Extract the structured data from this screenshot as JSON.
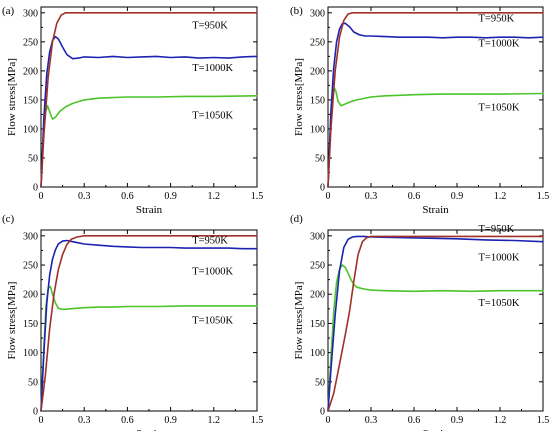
{
  "chart_data": [
    {
      "type": "line",
      "panel_label": "(a)",
      "xlabel": "Strain",
      "ylabel": "Flow stress[MPa]",
      "xlim": [
        0,
        1.5
      ],
      "ylim": [
        0,
        310
      ],
      "xticks": [
        "0",
        "0.3",
        "0.6",
        "0.9",
        "1.2",
        "1.5"
      ],
      "yticks": [
        "0",
        "50",
        "100",
        "150",
        "200",
        "250",
        "300"
      ],
      "grid": false,
      "series": [
        {
          "name": "T=950K",
          "color": "#a0302a",
          "label_pos": [
            1.05,
            273
          ],
          "x": [
            0,
            0.02,
            0.05,
            0.08,
            0.11,
            0.14,
            0.17,
            0.2,
            0.3,
            0.6,
            0.9,
            1.2,
            1.5
          ],
          "y": [
            0,
            90,
            190,
            250,
            282,
            296,
            300,
            300,
            300,
            300,
            300,
            300,
            300
          ]
        },
        {
          "name": "T=1000K",
          "color": "#1d23b0",
          "label_pos": [
            1.05,
            200
          ],
          "x": [
            0,
            0.02,
            0.04,
            0.06,
            0.08,
            0.1,
            0.12,
            0.15,
            0.18,
            0.22,
            0.26,
            0.3,
            0.4,
            0.5,
            0.6,
            0.7,
            0.8,
            0.9,
            1.0,
            1.1,
            1.2,
            1.3,
            1.4,
            1.5
          ],
          "y": [
            0,
            120,
            195,
            232,
            252,
            259,
            255,
            241,
            228,
            221,
            222,
            224,
            223,
            225,
            223,
            224,
            225,
            223,
            224,
            222,
            223,
            222,
            224,
            225
          ]
        },
        {
          "name": "T=1050K",
          "color": "#4cc42a",
          "label_pos": [
            1.05,
            118
          ],
          "x": [
            0,
            0.015,
            0.03,
            0.045,
            0.06,
            0.08,
            0.1,
            0.13,
            0.17,
            0.22,
            0.3,
            0.4,
            0.5,
            0.6,
            0.8,
            1.0,
            1.2,
            1.5
          ],
          "y": [
            0,
            80,
            128,
            140,
            130,
            117,
            120,
            130,
            138,
            144,
            150,
            153,
            154,
            155,
            155,
            156,
            156,
            157
          ]
        }
      ]
    },
    {
      "type": "line",
      "panel_label": "(b)",
      "xlabel": "Strain",
      "ylabel": "Flow stress[MPa]",
      "xlim": [
        0,
        1.5
      ],
      "ylim": [
        0,
        310
      ],
      "xticks": [
        "0",
        "0.3",
        "0.6",
        "0.9",
        "1.2",
        "1.5"
      ],
      "yticks": [
        "0",
        "50",
        "100",
        "150",
        "200",
        "250",
        "300"
      ],
      "grid": false,
      "series": [
        {
          "name": "T=950K",
          "color": "#a0302a",
          "label_pos": [
            1.05,
            285
          ],
          "x": [
            0,
            0.02,
            0.05,
            0.08,
            0.11,
            0.14,
            0.17,
            0.2,
            0.3,
            0.6,
            0.9,
            1.2,
            1.5
          ],
          "y": [
            0,
            100,
            200,
            258,
            287,
            298,
            300,
            300,
            300,
            300,
            300,
            300,
            300
          ]
        },
        {
          "name": "T=1000K",
          "color": "#1d23b0",
          "label_pos": [
            1.05,
            242
          ],
          "x": [
            0,
            0.02,
            0.04,
            0.06,
            0.08,
            0.1,
            0.12,
            0.15,
            0.18,
            0.22,
            0.26,
            0.3,
            0.4,
            0.5,
            0.6,
            0.7,
            0.8,
            0.9,
            1.0,
            1.1,
            1.2,
            1.3,
            1.4,
            1.5
          ],
          "y": [
            0,
            130,
            205,
            250,
            272,
            281,
            282,
            276,
            267,
            262,
            260,
            260,
            259,
            258,
            258,
            258,
            257,
            258,
            258,
            257,
            258,
            258,
            257,
            258
          ]
        },
        {
          "name": "T=1050K",
          "color": "#4cc42a",
          "label_pos": [
            1.05,
            132
          ],
          "x": [
            0,
            0.015,
            0.03,
            0.045,
            0.055,
            0.07,
            0.09,
            0.12,
            0.16,
            0.2,
            0.3,
            0.4,
            0.5,
            0.6,
            0.8,
            1.0,
            1.2,
            1.5
          ],
          "y": [
            0,
            90,
            150,
            170,
            165,
            148,
            140,
            143,
            147,
            150,
            155,
            157,
            158,
            159,
            160,
            160,
            160,
            161
          ]
        }
      ]
    },
    {
      "type": "line",
      "panel_label": "(c)",
      "xlabel": "Strain",
      "ylabel": "Flow stress[MPa]",
      "xlim": [
        0,
        1.5
      ],
      "ylim": [
        0,
        310
      ],
      "xticks": [
        "0",
        "0.3",
        "0.6",
        "0.9",
        "1.2",
        "1.5"
      ],
      "yticks": [
        "0",
        "50",
        "100",
        "150",
        "200",
        "250",
        "300"
      ],
      "grid": false,
      "series": [
        {
          "name": "T=950K",
          "color": "#a0302a",
          "label_pos": [
            1.05,
            287
          ],
          "x": [
            0,
            0.03,
            0.06,
            0.09,
            0.12,
            0.15,
            0.18,
            0.21,
            0.25,
            0.3,
            0.6,
            0.9,
            1.2,
            1.5
          ],
          "y": [
            0,
            60,
            140,
            200,
            242,
            268,
            285,
            294,
            298,
            300,
            300,
            300,
            300,
            300
          ]
        },
        {
          "name": "T=1000K",
          "color": "#1d23b0",
          "label_pos": [
            1.05,
            234
          ],
          "x": [
            0,
            0.02,
            0.04,
            0.06,
            0.08,
            0.1,
            0.12,
            0.15,
            0.18,
            0.22,
            0.26,
            0.3,
            0.4,
            0.5,
            0.6,
            0.7,
            0.8,
            0.9,
            1.0,
            1.1,
            1.2,
            1.3,
            1.4,
            1.5
          ],
          "y": [
            0,
            100,
            185,
            232,
            260,
            276,
            286,
            291,
            292,
            290,
            288,
            286,
            284,
            282,
            281,
            280,
            280,
            280,
            279,
            279,
            279,
            279,
            278,
            278
          ]
        },
        {
          "name": "T=1050K",
          "color": "#4cc42a",
          "label_pos": [
            1.05,
            150
          ],
          "x": [
            0,
            0.02,
            0.035,
            0.05,
            0.065,
            0.08,
            0.1,
            0.12,
            0.15,
            0.2,
            0.3,
            0.4,
            0.5,
            0.6,
            0.8,
            1.0,
            1.2,
            1.5
          ],
          "y": [
            0,
            110,
            180,
            210,
            213,
            200,
            185,
            176,
            174,
            175,
            177,
            178,
            178,
            179,
            179,
            180,
            180,
            180
          ]
        }
      ]
    },
    {
      "type": "line",
      "panel_label": "(d)",
      "xlabel": "Strain",
      "ylabel": "Flow stress[MPa]",
      "xlim": [
        0,
        1.5
      ],
      "ylim": [
        0,
        310
      ],
      "xticks": [
        "0",
        "0.3",
        "0.6",
        "0.9",
        "1.2",
        "1.5"
      ],
      "yticks": [
        "0",
        "50",
        "100",
        "150",
        "200",
        "250",
        "300"
      ],
      "grid": false,
      "series": [
        {
          "name": "T=950K",
          "color": "#a0302a",
          "label_pos": [
            1.05,
            307
          ],
          "x": [
            0,
            0.04,
            0.08,
            0.12,
            0.15,
            0.18,
            0.21,
            0.24,
            0.27,
            0.3,
            0.6,
            0.9,
            1.2,
            1.5
          ],
          "y": [
            0,
            30,
            80,
            130,
            170,
            222,
            268,
            290,
            297,
            299,
            299,
            299,
            299,
            299
          ]
        },
        {
          "name": "T=1000K",
          "color": "#1d23b0",
          "label_pos": [
            1.05,
            258
          ],
          "x": [
            0,
            0.02,
            0.05,
            0.08,
            0.11,
            0.14,
            0.17,
            0.2,
            0.25,
            0.3,
            0.5,
            0.7,
            0.9,
            1.1,
            1.3,
            1.5
          ],
          "y": [
            0,
            70,
            165,
            240,
            280,
            294,
            298,
            299,
            299,
            298,
            297,
            296,
            295,
            293,
            292,
            290
          ]
        },
        {
          "name": "T=1050K",
          "color": "#4cc42a",
          "label_pos": [
            1.05,
            180
          ],
          "x": [
            0,
            0.02,
            0.04,
            0.06,
            0.08,
            0.1,
            0.12,
            0.14,
            0.16,
            0.18,
            0.2,
            0.25,
            0.3,
            0.4,
            0.6,
            0.8,
            1.0,
            1.2,
            1.5
          ],
          "y": [
            0,
            90,
            170,
            220,
            243,
            250,
            246,
            236,
            225,
            217,
            212,
            209,
            207,
            206,
            205,
            206,
            205,
            206,
            206
          ]
        }
      ]
    }
  ]
}
